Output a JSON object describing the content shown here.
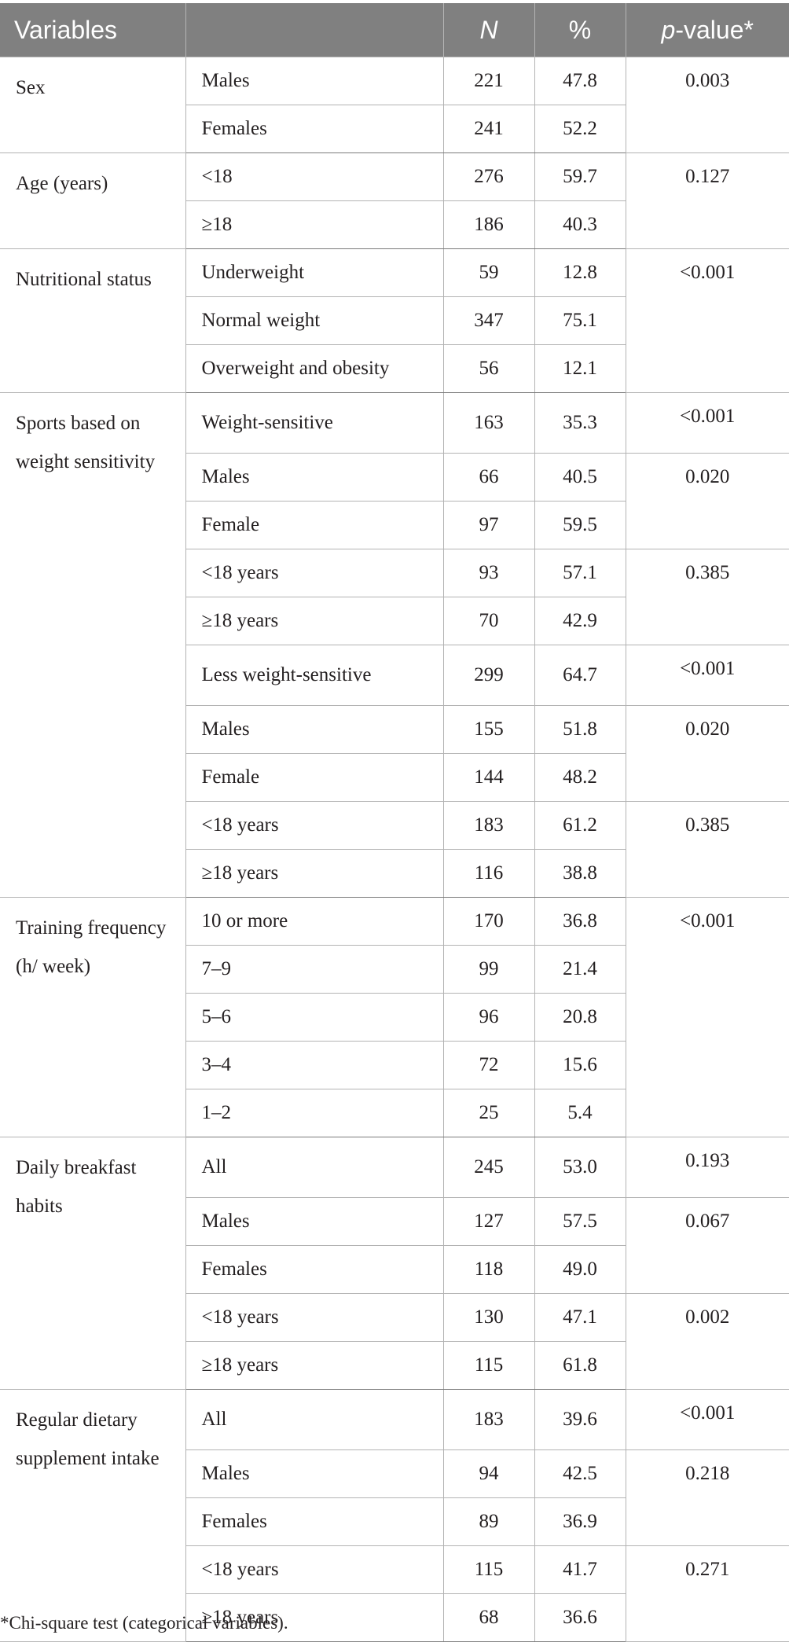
{
  "table": {
    "headers": {
      "variables": "Variables",
      "n": "N",
      "percent": "%",
      "pvalue_italic": "p",
      "pvalue_rest": "-value*"
    },
    "rows": [
      {
        "variable": "Sex",
        "category": "Males",
        "n": "221",
        "percent": "47.8",
        "p": "0.003"
      },
      {
        "category": "Females",
        "n": "241",
        "percent": "52.2"
      },
      {
        "variable": "Age (years)",
        "category": "<18",
        "n": "276",
        "percent": "59.7",
        "p": "0.127"
      },
      {
        "category": "≥18",
        "n": "186",
        "percent": "40.3"
      },
      {
        "variable": "Nutritional status",
        "category": "Underweight",
        "n": "59",
        "percent": "12.8",
        "p": "<0.001"
      },
      {
        "category": "Normal weight",
        "n": "347",
        "percent": "75.1"
      },
      {
        "category": "Overweight and obesity",
        "n": "56",
        "percent": "12.1"
      },
      {
        "variable": "Sports based on weight sensitivity",
        "category": "Weight-sensitive",
        "n": "163",
        "percent": "35.3",
        "p": "<0.001"
      },
      {
        "category": "Males",
        "n": "66",
        "percent": "40.5",
        "p": "0.020"
      },
      {
        "category": "Female",
        "n": "97",
        "percent": "59.5"
      },
      {
        "category": "<18 years",
        "n": "93",
        "percent": "57.1",
        "p": "0.385"
      },
      {
        "category": "≥18 years",
        "n": "70",
        "percent": "42.9"
      },
      {
        "category": "Less weight-sensitive",
        "n": "299",
        "percent": "64.7",
        "p": "<0.001"
      },
      {
        "category": "Males",
        "n": "155",
        "percent": "51.8",
        "p": "0.020"
      },
      {
        "category": "Female",
        "n": "144",
        "percent": "48.2"
      },
      {
        "category": "<18 years",
        "n": "183",
        "percent": "61.2",
        "p": "0.385"
      },
      {
        "category": "≥18 years",
        "n": "116",
        "percent": "38.8"
      },
      {
        "variable": "Training frequency (h/ week)",
        "category": "10 or more",
        "n": "170",
        "percent": "36.8",
        "p": "<0.001"
      },
      {
        "category": "7–9",
        "n": "99",
        "percent": "21.4"
      },
      {
        "category": "5–6",
        "n": "96",
        "percent": "20.8"
      },
      {
        "category": "3–4",
        "n": "72",
        "percent": "15.6"
      },
      {
        "category": "1–2",
        "n": "25",
        "percent": "5.4"
      },
      {
        "variable": "Daily breakfast habits",
        "category": "All",
        "n": "245",
        "percent": "53.0",
        "p": "0.193"
      },
      {
        "category": "Males",
        "n": "127",
        "percent": "57.5",
        "p": "0.067"
      },
      {
        "category": "Females",
        "n": "118",
        "percent": "49.0"
      },
      {
        "category": "<18 years",
        "n": "130",
        "percent": "47.1",
        "p": "0.002"
      },
      {
        "category": "≥18 years",
        "n": "115",
        "percent": "61.8"
      },
      {
        "variable": "Regular dietary supplement intake",
        "category": "All",
        "n": "183",
        "percent": "39.6",
        "p": "<0.001"
      },
      {
        "category": "Males",
        "n": "94",
        "percent": "42.5",
        "p": "0.218"
      },
      {
        "category": "Females",
        "n": "89",
        "percent": "36.9"
      },
      {
        "category": "<18 years",
        "n": "115",
        "percent": "41.7",
        "p": "0.271"
      },
      {
        "category": "≥18 years",
        "n": "68",
        "percent": "36.6"
      }
    ]
  },
  "footnote": "*Chi-square test (categorical variables)."
}
